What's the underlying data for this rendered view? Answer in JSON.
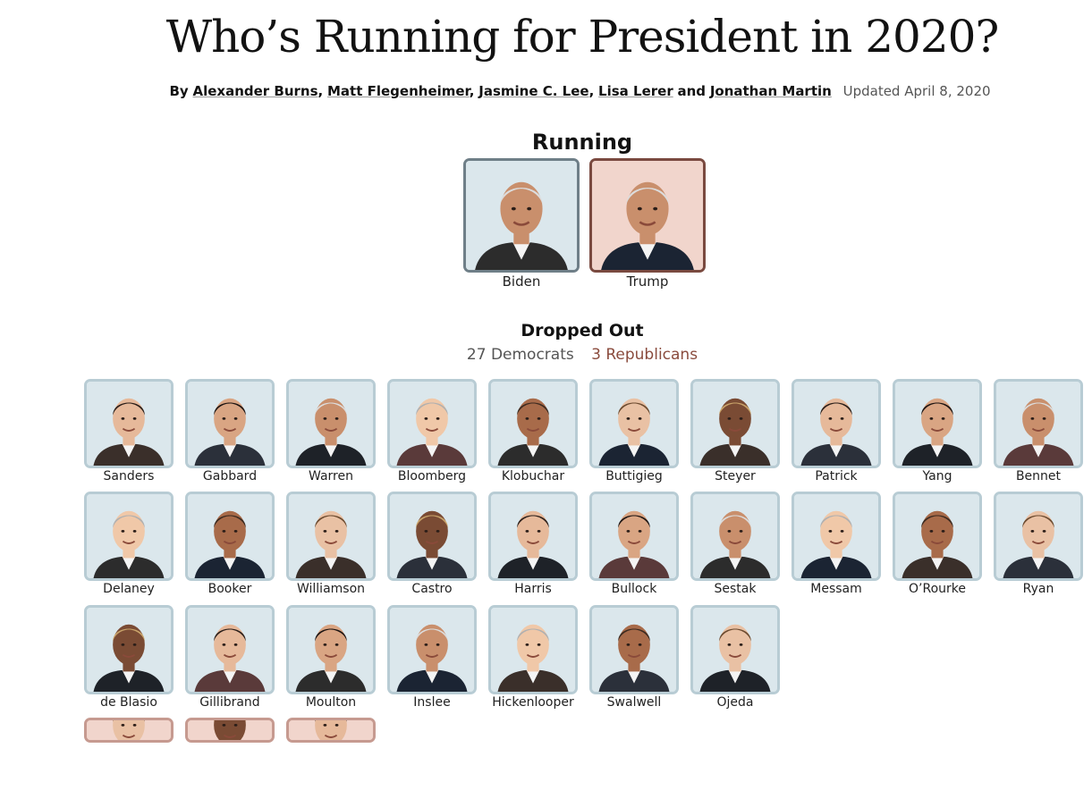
{
  "header": {
    "headline": "Who’s Running for President in 2020?",
    "byline_prefix": "By",
    "authors": [
      "Alexander Burns",
      "Matt Flegenheimer",
      "Jasmine C. Lee",
      "Lisa Lerer",
      "Jonathan Martin"
    ],
    "separators": [
      ",",
      ",",
      ",",
      "and"
    ],
    "updated": "Updated April 8, 2020"
  },
  "running": {
    "title": "Running",
    "candidates": [
      {
        "name": "Biden",
        "party": "dem"
      },
      {
        "name": "Trump",
        "party": "rep"
      }
    ]
  },
  "dropped": {
    "title": "Dropped Out",
    "filters": {
      "democrats": "27 Democrats",
      "republicans": "3 Republicans"
    },
    "candidates": [
      {
        "name": "Sanders",
        "party": "dem"
      },
      {
        "name": "Gabbard",
        "party": "dem"
      },
      {
        "name": "Warren",
        "party": "dem"
      },
      {
        "name": "Bloomberg",
        "party": "dem"
      },
      {
        "name": "Klobuchar",
        "party": "dem"
      },
      {
        "name": "Buttigieg",
        "party": "dem"
      },
      {
        "name": "Steyer",
        "party": "dem"
      },
      {
        "name": "Patrick",
        "party": "dem"
      },
      {
        "name": "Yang",
        "party": "dem"
      },
      {
        "name": "Bennet",
        "party": "dem"
      },
      {
        "name": "Delaney",
        "party": "dem"
      },
      {
        "name": "Booker",
        "party": "dem"
      },
      {
        "name": "Williamson",
        "party": "dem"
      },
      {
        "name": "Castro",
        "party": "dem"
      },
      {
        "name": "Harris",
        "party": "dem"
      },
      {
        "name": "Bullock",
        "party": "dem"
      },
      {
        "name": "Sestak",
        "party": "dem"
      },
      {
        "name": "Messam",
        "party": "dem"
      },
      {
        "name": "O’Rourke",
        "party": "dem"
      },
      {
        "name": "Ryan",
        "party": "dem"
      },
      {
        "name": "de Blasio",
        "party": "dem"
      },
      {
        "name": "Gillibrand",
        "party": "dem"
      },
      {
        "name": "Moulton",
        "party": "dem"
      },
      {
        "name": "Inslee",
        "party": "dem"
      },
      {
        "name": "Hickenlooper",
        "party": "dem"
      },
      {
        "name": "Swalwell",
        "party": "dem"
      },
      {
        "name": "Ojeda",
        "party": "dem"
      }
    ],
    "partial_row": [
      {
        "party": "rep"
      },
      {
        "party": "rep"
      },
      {
        "party": "rep"
      }
    ]
  },
  "colors": {
    "dem_bg": "#dbe7ec",
    "dem_border": "#b8ccd4",
    "rep_bg": "#f1d5cc",
    "rep_border": "#c69a90",
    "republicans_link": "#8a4b3d"
  }
}
